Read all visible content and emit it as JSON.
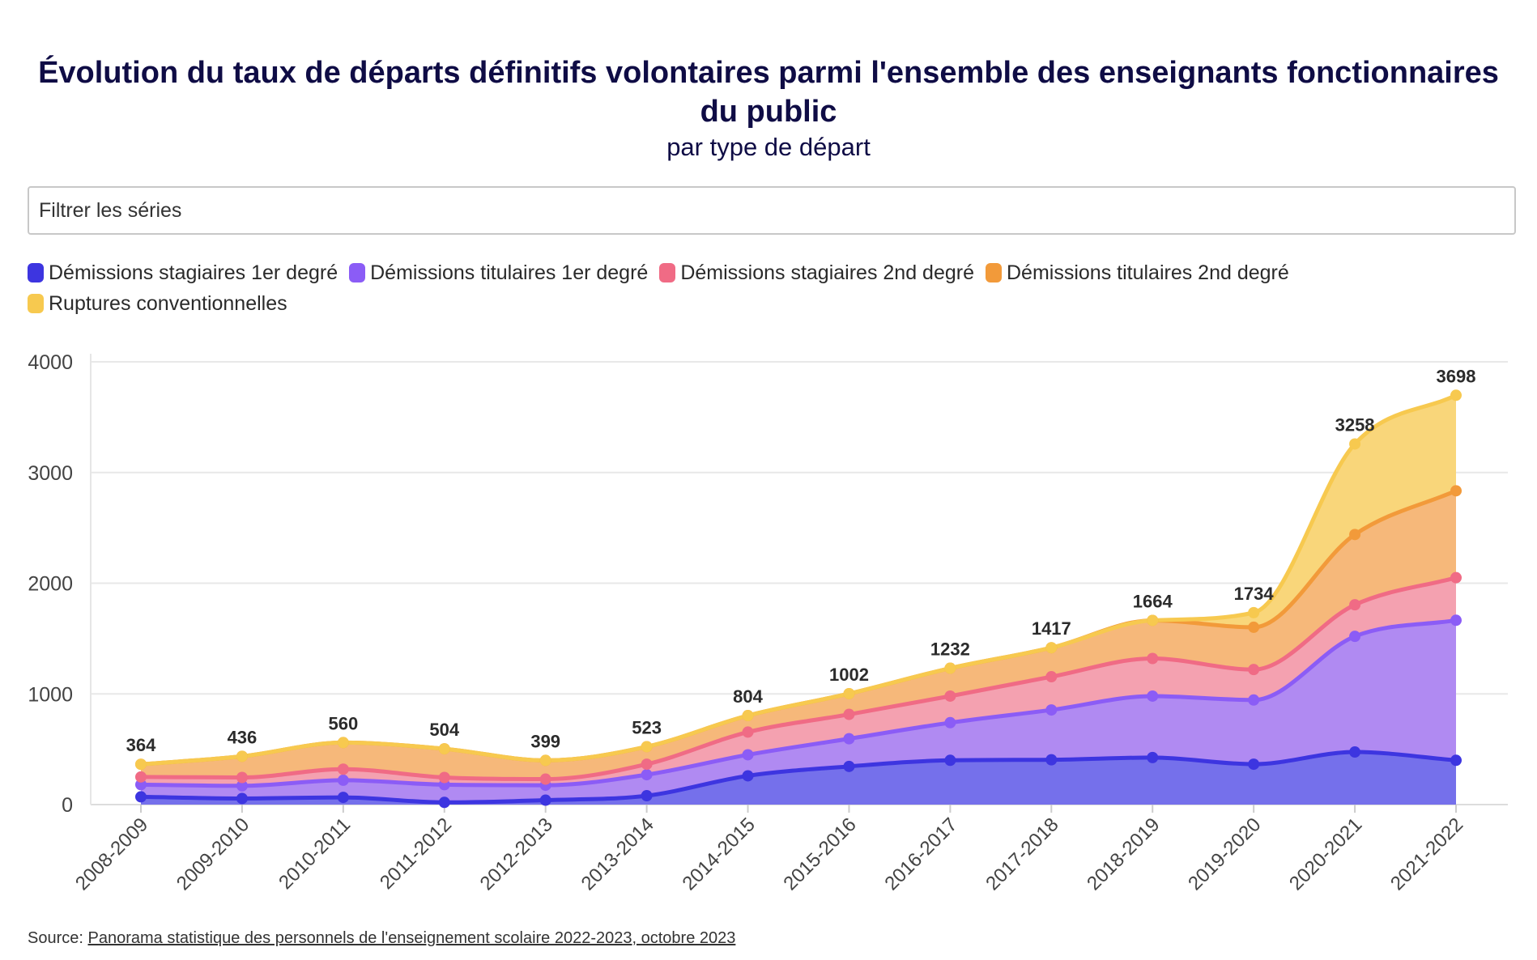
{
  "header": {
    "title": "Évolution du taux de départs définitifs volontaires parmi l'ensemble des enseignants fonctionnaires du public",
    "subtitle": "par type de départ"
  },
  "filter": {
    "placeholder": "Filtrer les séries"
  },
  "footer": {
    "source_label": "Source: ",
    "source_link": "Panorama statistique des personnels de l'enseignement scolaire 2022-2023, octobre 2023"
  },
  "chart_data": {
    "type": "area",
    "stacked": true,
    "smooth": true,
    "categories": [
      "2008-2009",
      "2009-2010",
      "2010-2011",
      "2011-2012",
      "2012-2013",
      "2013-2014",
      "2014-2015",
      "2015-2016",
      "2016-2017",
      "2017-2018",
      "2018-2019",
      "2019-2020",
      "2020-2021",
      "2021-2022"
    ],
    "ylim": [
      0,
      4000
    ],
    "yticks": [
      0,
      1000,
      2000,
      3000,
      4000
    ],
    "grid": true,
    "legend_position": "top-left",
    "series": [
      {
        "name": "Démissions stagiaires 1er degré",
        "color": "#3d35e0",
        "fill": "#7570eb",
        "values": [
          70,
          55,
          65,
          20,
          40,
          80,
          260,
          345,
          400,
          405,
          425,
          365,
          475,
          400
        ]
      },
      {
        "name": "Démissions titulaires 1er degré",
        "color": "#8b5cf6",
        "fill": "#b08af2",
        "values": [
          110,
          115,
          155,
          160,
          135,
          190,
          190,
          250,
          340,
          450,
          555,
          580,
          1045,
          1265
        ]
      },
      {
        "name": "Démissions stagiaires 2nd degré",
        "color": "#f06b85",
        "fill": "#f4a1b0",
        "values": [
          70,
          75,
          100,
          65,
          55,
          95,
          205,
          220,
          240,
          300,
          340,
          275,
          285,
          385
        ]
      },
      {
        "name": "Démissions titulaires 2nd degré",
        "color": "#f29a3a",
        "fill": "#f6b87a",
        "values": [
          114,
          191,
          240,
          259,
          169,
          158,
          149,
          187,
          252,
          262,
          344,
          382,
          635,
          785
        ]
      },
      {
        "name": "Ruptures conventionnelles",
        "color": "#f7c94f",
        "fill": "#f9d67a",
        "values": [
          0,
          0,
          0,
          0,
          0,
          0,
          0,
          0,
          0,
          0,
          0,
          132,
          818,
          863
        ]
      }
    ],
    "totals": [
      364,
      436,
      560,
      504,
      399,
      523,
      804,
      1002,
      1232,
      1417,
      1664,
      1734,
      3258,
      3698
    ]
  }
}
